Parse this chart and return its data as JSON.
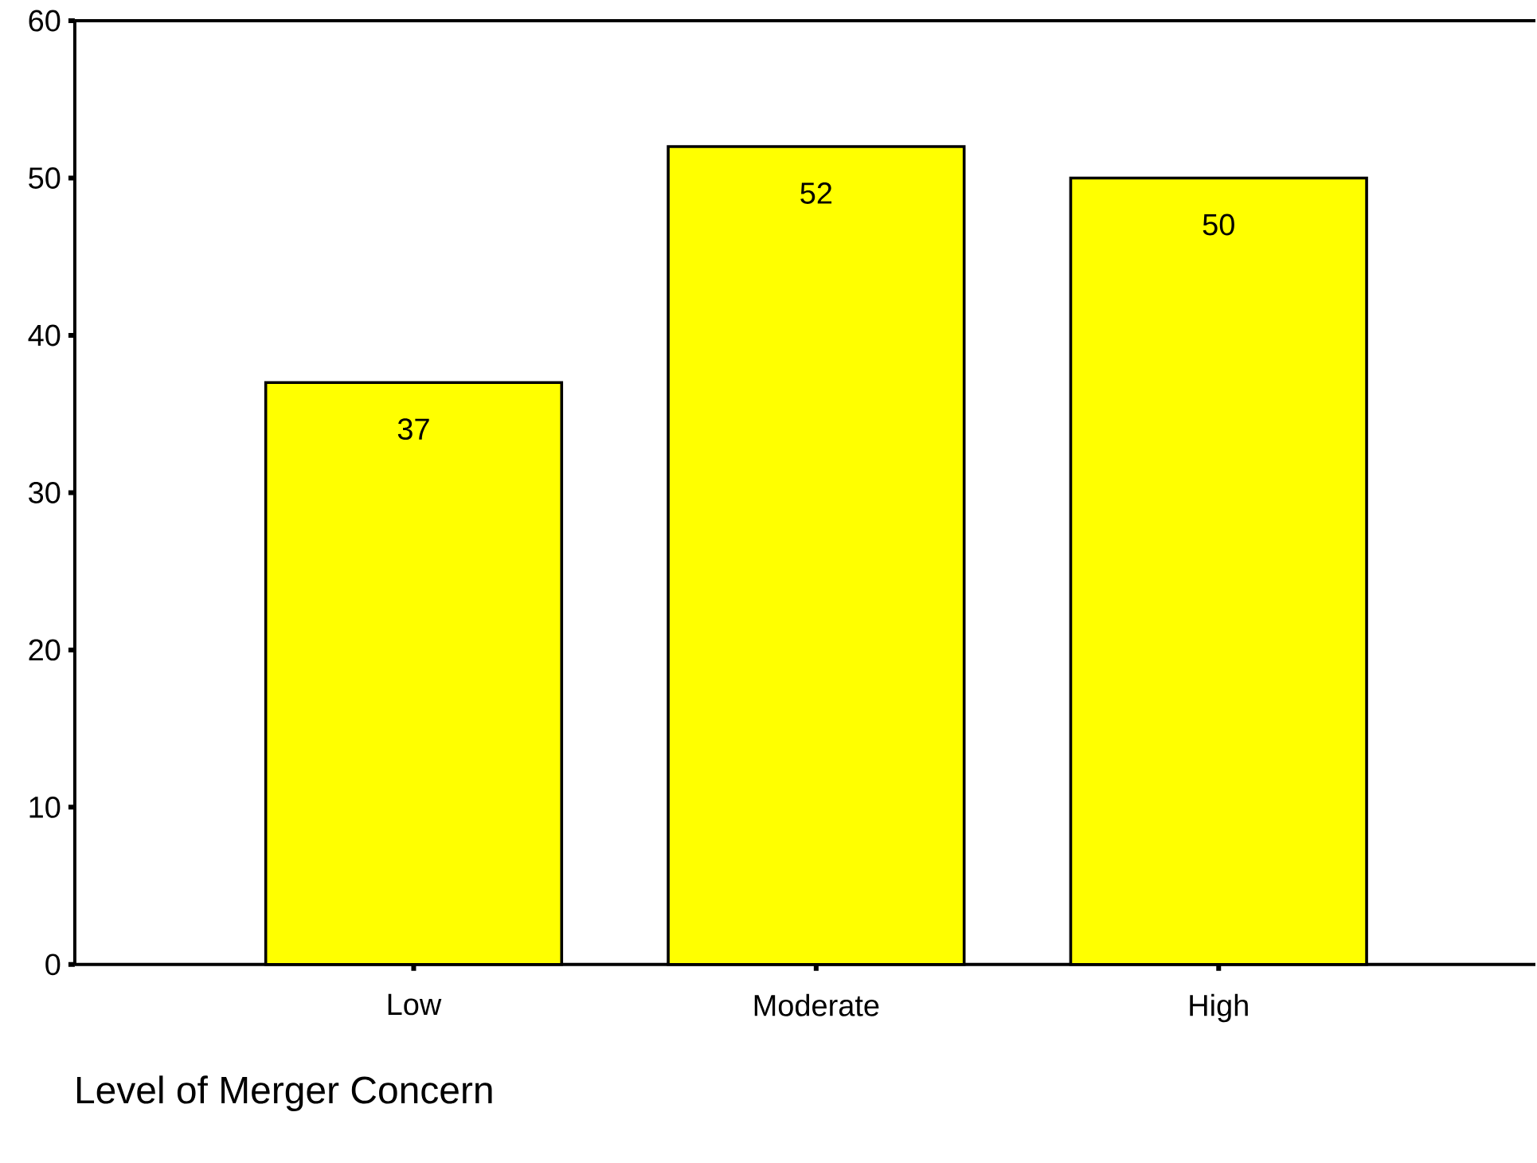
{
  "chart_data": {
    "type": "bar",
    "xlabel": "Level of Merger Concern",
    "categories": [
      "Low",
      "Moderate",
      "High"
    ],
    "values": [
      37,
      52,
      50
    ],
    "color": "#ffff00",
    "ylim": [
      0,
      60
    ],
    "yticks": [
      0,
      10,
      20,
      30,
      40,
      50,
      60
    ],
    "data_labels": true
  }
}
